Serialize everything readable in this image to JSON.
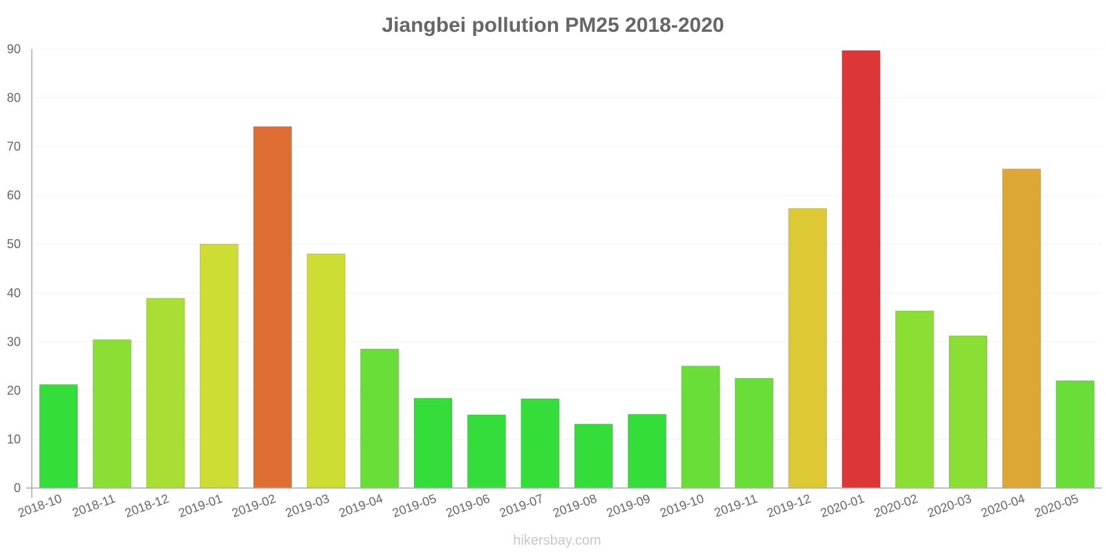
{
  "chart_data": {
    "type": "bar",
    "title": "Jiangbei pollution PM25 2018-2020",
    "xlabel": "",
    "ylabel": "",
    "ylim": [
      0,
      90
    ],
    "yticks": [
      "0",
      "10",
      "20",
      "30",
      "40",
      "50",
      "60",
      "70",
      "80",
      "90"
    ],
    "categories": [
      "2018-10",
      "2018-11",
      "2018-12",
      "2019-01",
      "2019-02",
      "2019-03",
      "2019-04",
      "2019-05",
      "2019-06",
      "2019-07",
      "2019-08",
      "2019-09",
      "2019-10",
      "2019-11",
      "2019-12",
      "2020-01",
      "2020-02",
      "2020-03",
      "2020-04",
      "2020-05"
    ],
    "values": [
      21.2,
      30.4,
      38.9,
      50.0,
      74.1,
      48.0,
      28.5,
      18.4,
      15.0,
      18.3,
      13.1,
      15.1,
      25.0,
      22.5,
      57.3,
      89.7,
      36.3,
      31.2,
      65.4,
      22.0
    ],
    "colors": [
      "#34dd3a",
      "#8ade34",
      "#a9de34",
      "#cedd34",
      "#de6e34",
      "#cedd34",
      "#69de38",
      "#34dd3a",
      "#34dd3a",
      "#34dd3a",
      "#34dd3a",
      "#34dd3a",
      "#69de38",
      "#69de38",
      "#dcc934",
      "#dd3636",
      "#8ade34",
      "#8ade34",
      "#dca734",
      "#69de38"
    ],
    "grid": true,
    "legend": "none"
  },
  "watermark": "hikersbay.com"
}
